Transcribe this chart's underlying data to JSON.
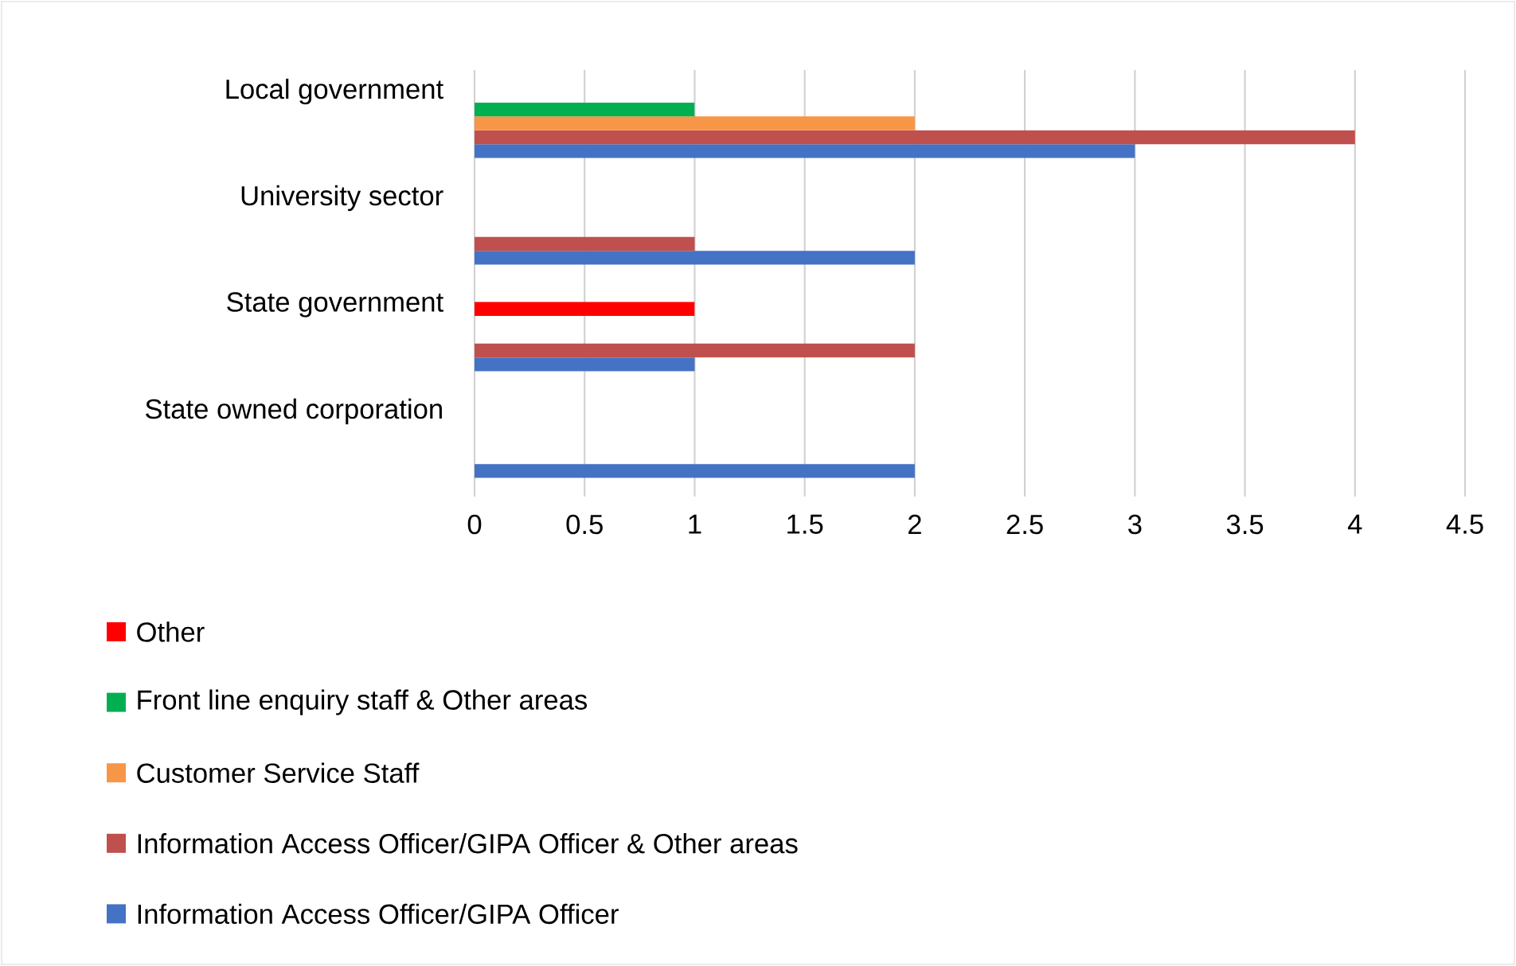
{
  "chart_data": {
    "type": "bar",
    "orientation": "horizontal",
    "categories": [
      "Local government",
      "University sector",
      "State government",
      "State owned corporation"
    ],
    "series": [
      {
        "name": "Information Access Officer/GIPA Officer",
        "color": "#4472c4",
        "values": [
          3,
          2,
          1,
          2
        ]
      },
      {
        "name": "Information Access Officer/GIPA Officer & Other areas",
        "color": "#c0504d",
        "values": [
          4,
          1,
          2,
          null
        ]
      },
      {
        "name": "Customer Service Staff",
        "color": "#f79646",
        "values": [
          2,
          null,
          null,
          null
        ]
      },
      {
        "name": "Front line enquiry staff & Other areas",
        "color": "#00b050",
        "values": [
          1,
          null,
          null,
          null
        ]
      },
      {
        "name": "Other",
        "color": "#ff0000",
        "values": [
          null,
          null,
          1,
          null
        ]
      }
    ],
    "xlim": [
      0,
      4.5
    ],
    "xticks": [
      0,
      0.5,
      1,
      1.5,
      2,
      2.5,
      3,
      3.5,
      4,
      4.5
    ],
    "grid": "x",
    "legend": "bottom"
  }
}
